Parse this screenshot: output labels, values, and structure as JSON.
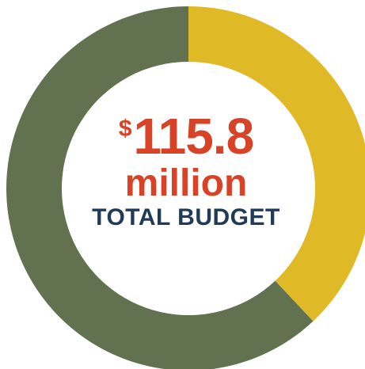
{
  "chart_data": {
    "type": "pie",
    "variant": "donut",
    "series": [
      {
        "value": 38,
        "color": "#e0b927"
      },
      {
        "value": 62,
        "color": "#627251"
      }
    ],
    "center_label": {
      "currency": "$",
      "amount": "115.8",
      "unit": "million",
      "caption": "TOTAL BUDGET"
    },
    "colors": {
      "amount_text": "#d84327",
      "caption_text": "#213a56"
    }
  }
}
